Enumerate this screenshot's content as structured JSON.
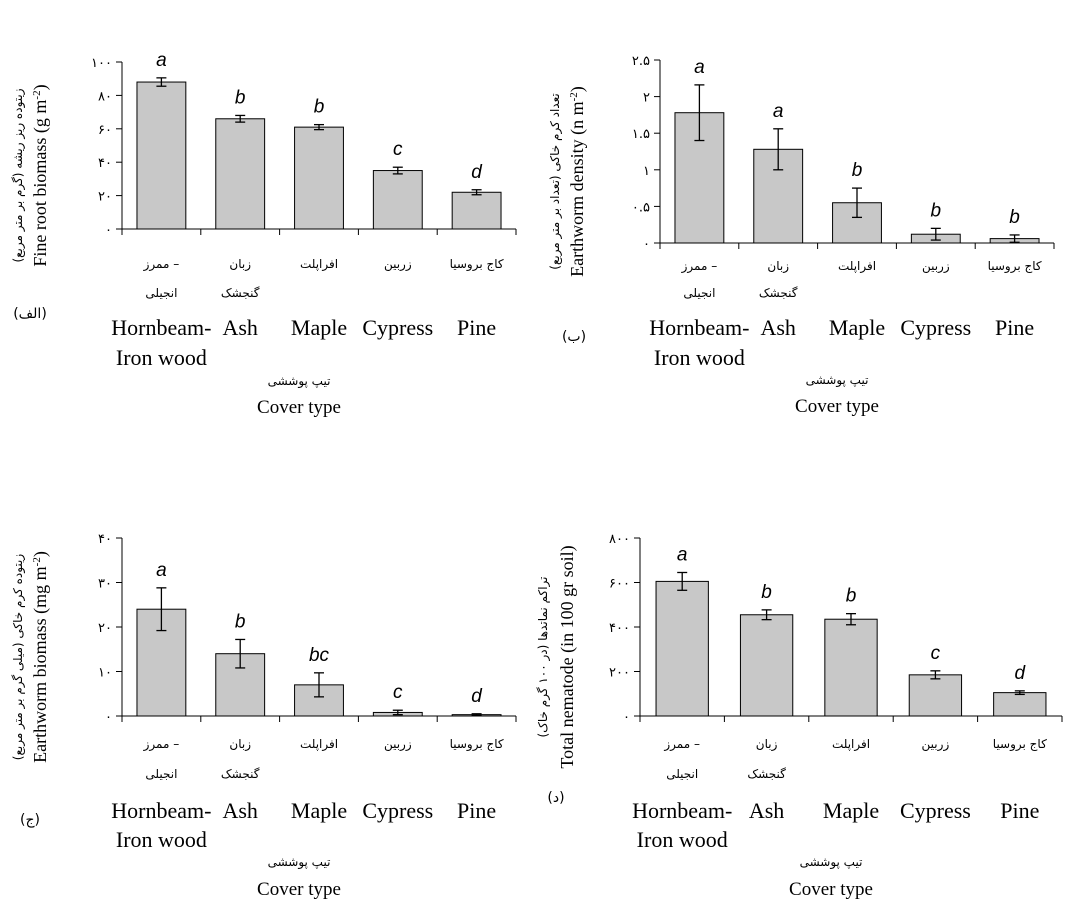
{
  "chart_data": [
    {
      "type": "bar",
      "panel_label": "(الف)",
      "ylabel_fa": "زیتوده ریز ریشه (گرم بر متر مربع)",
      "ylabel_en": "Fine root biomass (g m",
      "ylabel_en_sup": "-2",
      "ylabel_en_tail": ")",
      "xlabel_fa": "تیپ پوششی",
      "xlabel_en": "Cover type",
      "ylim": [
        0,
        100
      ],
      "ytick_values": [
        0,
        20,
        40,
        60,
        80,
        100
      ],
      "ytick_labels": [
        "۰",
        "۲۰",
        "۴۰",
        "۶۰",
        "۸۰",
        "۱۰۰"
      ],
      "categories_fa": [
        [
          "ممرز –",
          "انجیلی"
        ],
        [
          "زبان",
          "گنجشک"
        ],
        [
          "افراپلت"
        ],
        [
          "زربین"
        ],
        [
          "کاج بروسیا"
        ]
      ],
      "categories_en": [
        [
          "Hornbeam-",
          "Iron wood"
        ],
        [
          "Ash"
        ],
        [
          "Maple"
        ],
        [
          "Cypress"
        ],
        [
          "Pine"
        ]
      ],
      "values": [
        88,
        66,
        61,
        35,
        22
      ],
      "errors": [
        2.5,
        2,
        1.5,
        2,
        1.5
      ],
      "letters": [
        "a",
        "b",
        "b",
        "c",
        "d"
      ]
    },
    {
      "type": "bar",
      "panel_label": "(ب)",
      "ylabel_fa": "تعداد کرم خاکی (تعداد بر متر مربع)",
      "ylabel_en": "Earthworm density (n m",
      "ylabel_en_sup": "-2",
      "ylabel_en_tail": ")",
      "xlabel_fa": "تیپ پوششی",
      "xlabel_en": "Cover type",
      "ylim": [
        0,
        2.5
      ],
      "ytick_values": [
        0,
        0.5,
        1,
        1.5,
        2,
        2.5
      ],
      "ytick_labels": [
        "۰",
        "۰.۵",
        "۱",
        "۱.۵",
        "۲",
        "۲.۵"
      ],
      "categories_fa": [
        [
          "ممرز –",
          "انجیلی"
        ],
        [
          "زبان",
          "گنجشک"
        ],
        [
          "افراپلت"
        ],
        [
          "زربین"
        ],
        [
          "کاج بروسیا"
        ]
      ],
      "categories_en": [
        [
          "Hornbeam-",
          "Iron wood"
        ],
        [
          "Ash"
        ],
        [
          "Maple"
        ],
        [
          "Cypress"
        ],
        [
          "Pine"
        ]
      ],
      "values": [
        1.78,
        1.28,
        0.55,
        0.12,
        0.06
      ],
      "errors": [
        0.38,
        0.28,
        0.2,
        0.08,
        0.05
      ],
      "letters": [
        "a",
        "a",
        "b",
        "b",
        "b"
      ]
    },
    {
      "type": "bar",
      "panel_label": "(ج)",
      "ylabel_fa": "زیتوده کرم خاکی (میلی گرم بر متر مربع)",
      "ylabel_en": "Earthworm biomass (mg m",
      "ylabel_en_sup": "-2",
      "ylabel_en_tail": ")",
      "xlabel_fa": "تیپ پوششی",
      "xlabel_en": "Cover type",
      "ylim": [
        0,
        40
      ],
      "ytick_values": [
        0,
        10,
        20,
        30,
        40
      ],
      "ytick_labels": [
        "۰",
        "۱۰",
        "۲۰",
        "۳۰",
        "۴۰"
      ],
      "categories_fa": [
        [
          "ممرز –",
          "انجیلی"
        ],
        [
          "زبان",
          "گنجشک"
        ],
        [
          "افراپلت"
        ],
        [
          "زربین"
        ],
        [
          "کاج بروسیا"
        ]
      ],
      "categories_en": [
        [
          "Hornbeam-",
          "Iron wood"
        ],
        [
          "Ash"
        ],
        [
          "Maple"
        ],
        [
          "Cypress"
        ],
        [
          "Pine"
        ]
      ],
      "values": [
        24,
        14,
        7,
        0.8,
        0.3
      ],
      "errors": [
        4.8,
        3.2,
        2.7,
        0.5,
        0.2
      ],
      "letters": [
        "a",
        "b",
        "bc",
        "c",
        "d"
      ]
    },
    {
      "type": "bar",
      "panel_label": "(د)",
      "ylabel_fa": "تراکم نماتدها (در ۱۰۰ گرم خاک)",
      "ylabel_en": "Total nematode (in 100 gr soil)",
      "ylabel_en_sup": "",
      "ylabel_en_tail": "",
      "xlabel_fa": "تیپ پوششی",
      "xlabel_en": "Cover type",
      "ylim": [
        0,
        800
      ],
      "ytick_values": [
        0,
        200,
        400,
        600,
        800
      ],
      "ytick_labels": [
        "۰",
        "۲۰۰",
        "۴۰۰",
        "۶۰۰",
        "۸۰۰"
      ],
      "categories_fa": [
        [
          "ممرز –",
          "انجیلی"
        ],
        [
          "زبان",
          "گنجشک"
        ],
        [
          "افراپلت"
        ],
        [
          "زربین"
        ],
        [
          "کاج بروسیا"
        ]
      ],
      "categories_en": [
        [
          "Hornbeam-",
          "Iron wood"
        ],
        [
          "Ash"
        ],
        [
          "Maple"
        ],
        [
          "Cypress"
        ],
        [
          "Pine"
        ]
      ],
      "values": [
        605,
        455,
        435,
        185,
        105
      ],
      "errors": [
        40,
        22,
        25,
        18,
        8
      ],
      "letters": [
        "a",
        "b",
        "b",
        "c",
        "d"
      ]
    }
  ],
  "colors": {
    "bar_fill": "#c8c8c8",
    "bar_stroke": "#000000",
    "axis": "#000000"
  }
}
